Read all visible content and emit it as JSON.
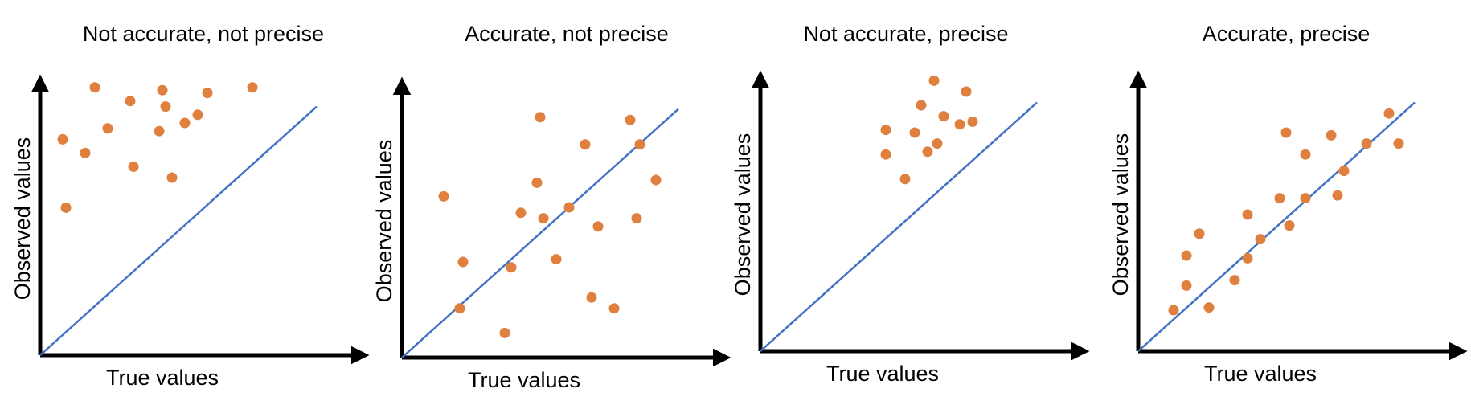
{
  "figure": {
    "colors": {
      "axis": "#000000",
      "reference_line": "#4472c4",
      "points": "#e0803f",
      "background": "#ffffff"
    }
  },
  "chart_data": [
    {
      "type": "scatter",
      "title": "Not accurate, not precise",
      "xlabel": "True values",
      "ylabel": "Observed values",
      "xlim": [
        0,
        1
      ],
      "ylim": [
        0,
        1
      ],
      "grid": false,
      "legend": "none",
      "reference_line": {
        "label": "",
        "points": [
          [
            0,
            0
          ],
          [
            0.86,
            0.91
          ]
        ]
      },
      "points": [
        {
          "x": 0.17,
          "y": 0.98
        },
        {
          "x": 0.38,
          "y": 0.97
        },
        {
          "x": 0.52,
          "y": 0.96
        },
        {
          "x": 0.66,
          "y": 0.98
        },
        {
          "x": 0.28,
          "y": 0.93
        },
        {
          "x": 0.07,
          "y": 0.79
        },
        {
          "x": 0.21,
          "y": 0.83
        },
        {
          "x": 0.37,
          "y": 0.82
        },
        {
          "x": 0.45,
          "y": 0.85
        },
        {
          "x": 0.49,
          "y": 0.88
        },
        {
          "x": 0.14,
          "y": 0.74
        },
        {
          "x": 0.29,
          "y": 0.69
        },
        {
          "x": 0.41,
          "y": 0.65
        },
        {
          "x": 0.08,
          "y": 0.54
        },
        {
          "x": 0.39,
          "y": 0.91
        }
      ]
    },
    {
      "type": "scatter",
      "title": "Accurate, not precise",
      "xlabel": "True values",
      "ylabel": "Observed values",
      "xlim": [
        0,
        1
      ],
      "ylim": [
        0,
        1
      ],
      "grid": false,
      "legend": "none",
      "reference_line": {
        "label": "",
        "points": [
          [
            0,
            0
          ],
          [
            0.86,
            0.91
          ]
        ]
      },
      "points": [
        {
          "x": 0.43,
          "y": 0.88
        },
        {
          "x": 0.71,
          "y": 0.87
        },
        {
          "x": 0.57,
          "y": 0.78
        },
        {
          "x": 0.74,
          "y": 0.78
        },
        {
          "x": 0.42,
          "y": 0.64
        },
        {
          "x": 0.79,
          "y": 0.65
        },
        {
          "x": 0.13,
          "y": 0.59
        },
        {
          "x": 0.37,
          "y": 0.53
        },
        {
          "x": 0.44,
          "y": 0.51
        },
        {
          "x": 0.52,
          "y": 0.55
        },
        {
          "x": 0.61,
          "y": 0.48
        },
        {
          "x": 0.73,
          "y": 0.51
        },
        {
          "x": 0.19,
          "y": 0.35
        },
        {
          "x": 0.34,
          "y": 0.33
        },
        {
          "x": 0.48,
          "y": 0.36
        },
        {
          "x": 0.18,
          "y": 0.18
        },
        {
          "x": 0.59,
          "y": 0.22
        },
        {
          "x": 0.66,
          "y": 0.18
        },
        {
          "x": 0.32,
          "y": 0.09
        }
      ]
    },
    {
      "type": "scatter",
      "title": "Not accurate, precise",
      "xlabel": "True values",
      "ylabel": "Observed values",
      "xlim": [
        0,
        1
      ],
      "ylim": [
        0,
        1
      ],
      "grid": false,
      "legend": "none",
      "reference_line": {
        "label": "",
        "points": [
          [
            0,
            0
          ],
          [
            0.86,
            0.91
          ]
        ]
      },
      "points": [
        {
          "x": 0.54,
          "y": 0.99
        },
        {
          "x": 0.64,
          "y": 0.95
        },
        {
          "x": 0.5,
          "y": 0.9
        },
        {
          "x": 0.57,
          "y": 0.86
        },
        {
          "x": 0.62,
          "y": 0.83
        },
        {
          "x": 0.66,
          "y": 0.84
        },
        {
          "x": 0.39,
          "y": 0.81
        },
        {
          "x": 0.48,
          "y": 0.8
        },
        {
          "x": 0.55,
          "y": 0.76
        },
        {
          "x": 0.52,
          "y": 0.73
        },
        {
          "x": 0.39,
          "y": 0.72
        },
        {
          "x": 0.45,
          "y": 0.63
        }
      ]
    },
    {
      "type": "scatter",
      "title": "Accurate, precise",
      "xlabel": "True values",
      "ylabel": "Observed values",
      "xlim": [
        0,
        1
      ],
      "ylim": [
        0,
        1
      ],
      "grid": false,
      "legend": "none",
      "reference_line": {
        "label": "",
        "points": [
          [
            0,
            0
          ],
          [
            0.86,
            0.91
          ]
        ]
      },
      "points": [
        {
          "x": 0.78,
          "y": 0.87
        },
        {
          "x": 0.46,
          "y": 0.8
        },
        {
          "x": 0.6,
          "y": 0.79
        },
        {
          "x": 0.71,
          "y": 0.76
        },
        {
          "x": 0.81,
          "y": 0.76
        },
        {
          "x": 0.52,
          "y": 0.72
        },
        {
          "x": 0.64,
          "y": 0.66
        },
        {
          "x": 0.44,
          "y": 0.56
        },
        {
          "x": 0.52,
          "y": 0.56
        },
        {
          "x": 0.62,
          "y": 0.57
        },
        {
          "x": 0.34,
          "y": 0.5
        },
        {
          "x": 0.38,
          "y": 0.41
        },
        {
          "x": 0.47,
          "y": 0.46
        },
        {
          "x": 0.19,
          "y": 0.43
        },
        {
          "x": 0.34,
          "y": 0.34
        },
        {
          "x": 0.15,
          "y": 0.35
        },
        {
          "x": 0.3,
          "y": 0.26
        },
        {
          "x": 0.15,
          "y": 0.24
        },
        {
          "x": 0.11,
          "y": 0.15
        },
        {
          "x": 0.22,
          "y": 0.16
        }
      ]
    }
  ]
}
